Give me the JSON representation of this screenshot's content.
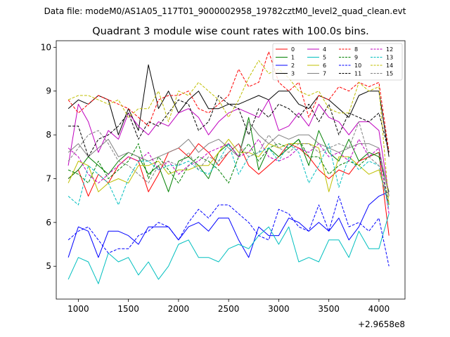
{
  "chart_data": {
    "type": "line",
    "suptitle": "Data file: modeM0/AS1A05_117T01_9000002958_19782cztM0_level2_quad_clean.evt",
    "title": "Quadrant 3 module wise count rates with 100.0s bins.",
    "xlabel": "",
    "ylabel": "",
    "x_offset_text": "+2.9658e8",
    "xlim": [
      780,
      4260
    ],
    "ylim": [
      4.25,
      10.15
    ],
    "xticks": [
      1000,
      1500,
      2000,
      2500,
      3000,
      3500,
      4000
    ],
    "xtick_labels": [
      "1000",
      "1500",
      "2000",
      "2500",
      "3000",
      "3500",
      "4000"
    ],
    "yticks": [
      5,
      6,
      7,
      8,
      9,
      10
    ],
    "ytick_labels": [
      "5",
      "6",
      "7",
      "8",
      "9",
      "10"
    ],
    "legend_position": "upper-right",
    "legend_columns": 4,
    "x": [
      900,
      1000,
      1100,
      1200,
      1300,
      1400,
      1500,
      1600,
      1700,
      1800,
      1900,
      2000,
      2100,
      2200,
      2300,
      2400,
      2500,
      2600,
      2700,
      2800,
      2900,
      3000,
      3100,
      3200,
      3300,
      3400,
      3500,
      3600,
      3700,
      3800,
      3900,
      4000,
      4100
    ],
    "series": [
      {
        "name": "0",
        "color": "#ff0000",
        "dash": "solid",
        "values": [
          7.0,
          7.2,
          6.6,
          7.1,
          6.9,
          7.3,
          7.5,
          7.4,
          6.7,
          7.1,
          7.6,
          7.7,
          7.5,
          7.8,
          7.6,
          7.3,
          7.6,
          7.8,
          7.3,
          7.1,
          7.3,
          7.5,
          7.8,
          7.7,
          7.5,
          7.2,
          7.0,
          7.2,
          7.1,
          7.4,
          7.5,
          7.6,
          5.7
        ]
      },
      {
        "name": "1",
        "color": "#008000",
        "dash": "solid",
        "values": [
          7.0,
          7.2,
          7.5,
          7.3,
          7.1,
          7.4,
          7.6,
          7.5,
          7.1,
          7.3,
          6.7,
          7.4,
          7.5,
          7.3,
          7.0,
          7.6,
          7.8,
          7.5,
          8.4,
          7.2,
          7.7,
          7.5,
          7.7,
          7.9,
          7.3,
          8.1,
          7.6,
          7.4,
          7.9,
          7.4,
          7.6,
          7.5,
          6.7
        ]
      },
      {
        "name": "2",
        "color": "#0000ff",
        "dash": "solid",
        "values": [
          5.2,
          5.9,
          5.8,
          5.2,
          5.8,
          5.8,
          5.7,
          5.5,
          5.9,
          5.9,
          5.9,
          5.6,
          5.9,
          6.0,
          5.8,
          6.1,
          6.1,
          5.6,
          5.2,
          5.9,
          5.7,
          5.7,
          6.1,
          6.0,
          5.8,
          6.0,
          5.8,
          6.1,
          5.6,
          5.9,
          6.4,
          6.6,
          6.7
        ]
      },
      {
        "name": "3",
        "color": "#000000",
        "dash": "solid",
        "values": [
          8.6,
          8.8,
          8.7,
          8.9,
          8.8,
          8.0,
          8.6,
          8.1,
          9.6,
          8.6,
          9.0,
          8.5,
          8.8,
          9.0,
          8.6,
          8.6,
          8.7,
          8.7,
          8.8,
          8.9,
          8.8,
          9.0,
          9.0,
          8.7,
          8.6,
          8.9,
          8.8,
          8.6,
          8.4,
          8.9,
          9.0,
          9.0,
          7.5
        ]
      },
      {
        "name": "4",
        "color": "#bf00bf",
        "dash": "solid",
        "values": [
          7.3,
          8.7,
          8.3,
          7.6,
          8.1,
          7.9,
          8.5,
          8.2,
          8.0,
          8.3,
          8.2,
          8.5,
          8.6,
          8.4,
          8.0,
          8.3,
          8.5,
          8.6,
          8.5,
          8.4,
          8.8,
          8.1,
          8.2,
          8.5,
          8.2,
          8.7,
          8.4,
          8.3,
          8.0,
          8.3,
          8.3,
          8.1,
          6.6
        ]
      },
      {
        "name": "5",
        "color": "#00bfbf",
        "dash": "solid",
        "values": [
          4.7,
          5.2,
          5.1,
          4.6,
          5.3,
          5.1,
          5.2,
          4.8,
          5.1,
          4.7,
          5.0,
          5.5,
          5.6,
          5.2,
          5.2,
          5.1,
          5.4,
          5.5,
          5.4,
          5.7,
          5.9,
          5.5,
          5.9,
          5.1,
          5.2,
          5.1,
          5.6,
          5.6,
          5.2,
          5.8,
          5.4,
          5.4,
          6.2
        ]
      },
      {
        "name": "6",
        "color": "#bfbf00",
        "dash": "solid",
        "values": [
          6.9,
          7.4,
          7.3,
          6.7,
          6.9,
          7.0,
          6.9,
          7.3,
          7.3,
          7.4,
          7.1,
          7.2,
          7.2,
          7.3,
          7.3,
          7.6,
          7.9,
          7.6,
          7.6,
          7.5,
          7.8,
          7.7,
          7.8,
          7.8,
          7.8,
          7.7,
          6.7,
          7.5,
          7.5,
          7.3,
          7.1,
          7.2,
          6.4
        ]
      },
      {
        "name": "7",
        "color": "#808080",
        "dash": "solid",
        "values": [
          7.6,
          7.8,
          7.5,
          7.7,
          7.9,
          7.5,
          7.6,
          7.5,
          7.4,
          7.5,
          7.6,
          7.7,
          7.9,
          7.6,
          7.8,
          7.9,
          7.7,
          7.5,
          8.3,
          8.0,
          7.8,
          8.0,
          7.9,
          8.0,
          8.0,
          7.8,
          7.7,
          7.6,
          7.7,
          7.8,
          7.8,
          7.7,
          6.6
        ]
      },
      {
        "name": "8",
        "color": "#ff0000",
        "dash": "dashed",
        "values": [
          8.8,
          8.5,
          8.7,
          8.9,
          8.8,
          8.7,
          8.6,
          8.4,
          8.2,
          8.8,
          8.9,
          8.9,
          9.0,
          8.6,
          8.5,
          8.7,
          8.9,
          9.5,
          9.1,
          9.2,
          9.9,
          9.2,
          9.0,
          9.2,
          8.4,
          8.9,
          8.8,
          9.1,
          9.0,
          9.2,
          9.1,
          9.2,
          7.6
        ]
      },
      {
        "name": "9",
        "color": "#008000",
        "dash": "dashed",
        "values": [
          7.2,
          7.1,
          6.9,
          7.4,
          7.0,
          7.2,
          7.4,
          7.8,
          7.0,
          7.5,
          7.2,
          6.9,
          7.3,
          7.5,
          7.4,
          7.2,
          6.9,
          7.5,
          7.8,
          7.4,
          7.7,
          7.8,
          7.7,
          7.9,
          7.5,
          7.5,
          7.1,
          7.3,
          7.4,
          7.3,
          7.5,
          7.6,
          6.4
        ]
      },
      {
        "name": "10",
        "color": "#0000ff",
        "dash": "dashed",
        "values": [
          5.6,
          5.8,
          5.9,
          5.6,
          5.3,
          5.4,
          5.4,
          5.7,
          5.8,
          6.0,
          5.9,
          5.6,
          6.0,
          6.3,
          6.1,
          6.4,
          6.4,
          6.2,
          6.0,
          5.7,
          5.6,
          6.3,
          6.2,
          5.9,
          5.8,
          6.4,
          5.8,
          6.6,
          5.9,
          6.0,
          5.8,
          6.1,
          5.0
        ]
      },
      {
        "name": "11",
        "color": "#000000",
        "dash": "dashed",
        "values": [
          8.2,
          8.2,
          7.5,
          7.9,
          8.0,
          8.2,
          8.5,
          7.9,
          8.3,
          8.2,
          8.5,
          8.8,
          8.7,
          8.1,
          8.3,
          8.9,
          8.7,
          8.6,
          8.0,
          8.6,
          8.4,
          8.7,
          8.6,
          8.4,
          8.7,
          8.3,
          8.7,
          8.0,
          8.5,
          8.4,
          8.3,
          8.5,
          7.6
        ]
      },
      {
        "name": "12",
        "color": "#bf00bf",
        "dash": "dashed",
        "values": [
          7.7,
          7.5,
          7.1,
          6.9,
          7.1,
          7.3,
          7.5,
          7.4,
          7.6,
          7.2,
          7.4,
          7.1,
          7.3,
          7.4,
          7.6,
          7.7,
          7.8,
          7.5,
          7.6,
          7.9,
          7.5,
          7.4,
          7.5,
          7.7,
          7.6,
          7.8,
          7.5,
          7.6,
          7.4,
          7.9,
          7.5,
          7.7,
          6.2
        ]
      },
      {
        "name": "13",
        "color": "#00bfbf",
        "dash": "dashed",
        "values": [
          6.6,
          6.4,
          7.3,
          7.1,
          6.9,
          6.4,
          7.0,
          7.4,
          7.4,
          7.2,
          7.3,
          7.3,
          7.4,
          7.2,
          7.1,
          7.4,
          7.8,
          7.1,
          7.5,
          7.6,
          7.7,
          7.4,
          7.8,
          7.6,
          6.9,
          7.3,
          7.8,
          6.8,
          7.5,
          7.2,
          7.4,
          7.3,
          6.3
        ]
      },
      {
        "name": "14",
        "color": "#bfbf00",
        "dash": "dashed",
        "values": [
          8.8,
          8.9,
          8.9,
          8.8,
          8.7,
          8.8,
          8.4,
          8.6,
          8.6,
          9.0,
          8.3,
          9.0,
          8.9,
          9.2,
          9.0,
          8.8,
          8.4,
          8.8,
          9.3,
          9.7,
          9.4,
          9.5,
          9.3,
          9.0,
          8.9,
          9.0,
          8.6,
          8.5,
          8.5,
          9.2,
          9.0,
          9.1,
          6.4
        ]
      },
      {
        "name": "15",
        "color": "#808080",
        "dash": "dashed",
        "values": [
          7.4,
          7.7,
          8.0,
          8.1,
          7.8,
          7.4,
          7.3,
          7.1,
          6.9,
          7.3,
          7.4,
          7.3,
          7.6,
          7.2,
          7.5,
          7.4,
          7.6,
          7.8,
          7.5,
          7.6,
          8.0,
          7.7,
          7.6,
          7.8,
          7.8,
          7.6,
          7.7,
          7.8,
          7.7,
          8.3,
          7.5,
          7.3,
          6.4
        ]
      }
    ]
  }
}
